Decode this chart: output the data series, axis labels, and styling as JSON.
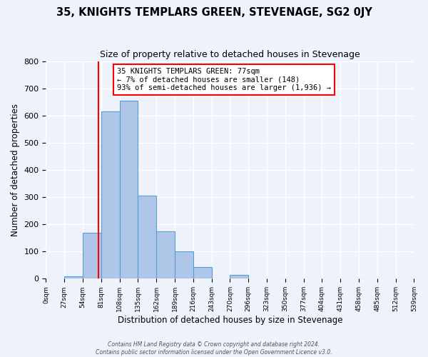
{
  "title": "35, KNIGHTS TEMPLARS GREEN, STEVENAGE, SG2 0JY",
  "subtitle": "Size of property relative to detached houses in Stevenage",
  "xlabel": "Distribution of detached houses by size in Stevenage",
  "ylabel": "Number of detached properties",
  "bin_edges": [
    0,
    27,
    54,
    81,
    108,
    135,
    162,
    189,
    216,
    243,
    270,
    297,
    324,
    351,
    378,
    405,
    432,
    459,
    486,
    513,
    540
  ],
  "bin_labels": [
    "0sqm",
    "27sqm",
    "54sqm",
    "81sqm",
    "108sqm",
    "135sqm",
    "162sqm",
    "189sqm",
    "216sqm",
    "243sqm",
    "270sqm",
    "296sqm",
    "323sqm",
    "350sqm",
    "377sqm",
    "404sqm",
    "431sqm",
    "458sqm",
    "485sqm",
    "512sqm",
    "539sqm"
  ],
  "counts": [
    0,
    10,
    170,
    615,
    655,
    305,
    175,
    100,
    42,
    0,
    15,
    0,
    0,
    0,
    0,
    2,
    0,
    0,
    0,
    0
  ],
  "bar_color": "#aec6e8",
  "bar_edge_color": "#5a9fd4",
  "property_line_x": 77,
  "property_line_color": "red",
  "annotation_text": "35 KNIGHTS TEMPLARS GREEN: 77sqm\n← 7% of detached houses are smaller (148)\n93% of semi-detached houses are larger (1,936) →",
  "annotation_box_color": "white",
  "annotation_box_edge_color": "red",
  "ylim": [
    0,
    800
  ],
  "yticks": [
    0,
    100,
    200,
    300,
    400,
    500,
    600,
    700,
    800
  ],
  "footer_line1": "Contains HM Land Registry data © Crown copyright and database right 2024.",
  "footer_line2": "Contains public sector information licensed under the Open Government Licence v3.0.",
  "background_color": "#eef2fb",
  "grid_color": "white"
}
